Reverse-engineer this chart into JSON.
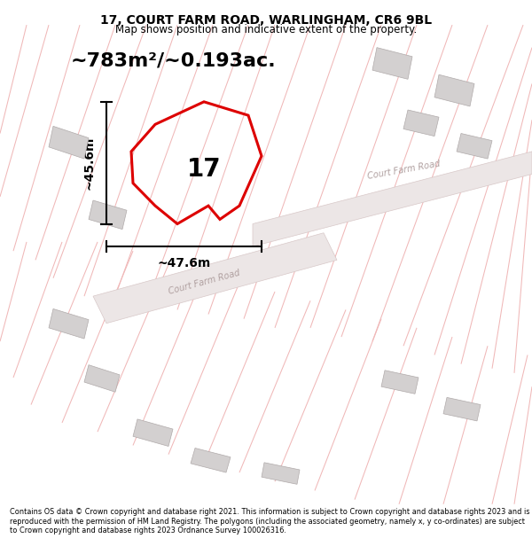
{
  "title_line1": "17, COURT FARM ROAD, WARLINGHAM, CR6 9BL",
  "title_line2": "Map shows position and indicative extent of the property.",
  "area_text": "~783m²/~0.193ac.",
  "label_17": "17",
  "dim_width": "~47.6m",
  "dim_height": "~45.6m",
  "road_label1": "Court Farm Road",
  "road_label2": "Court Farm Road",
  "footer_text": "Contains OS data © Crown copyright and database right 2021. This information is subject to Crown copyright and database rights 2023 and is reproduced with the permission of HM Land Registry. The polygons (including the associated geometry, namely x, y co-ordinates) are subject to Crown copyright and database rights 2023 Ordnance Survey 100026316.",
  "bg_color": "#ffffff",
  "red_poly_color": "#dd0000",
  "building_color": "#d3d0d0",
  "road_fill": "#ede8e8",
  "line_color": "#f0b8b8",
  "text_color": "#000000",
  "road_text_color": "#b0a0a0",
  "dim_line_color": "#000000"
}
